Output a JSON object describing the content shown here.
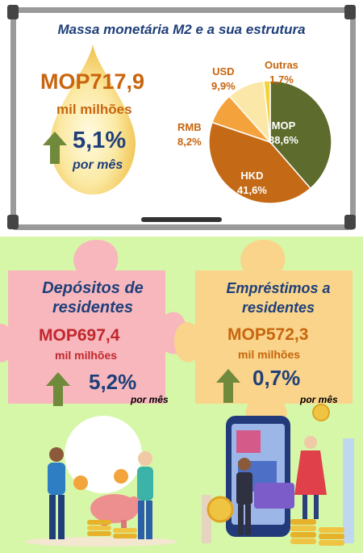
{
  "board": {
    "title": "Massa monetária M2 e a sua estrutura",
    "amount": "MOP717,9",
    "unit": "mil milhões",
    "change": "5,1%",
    "frequency": "por mês"
  },
  "chart_data": {
    "type": "pie",
    "slices": [
      {
        "name": "MOP",
        "label": "38,6%",
        "value": 38.6,
        "color": "#5d6b2c"
      },
      {
        "name": "HKD",
        "label": "41,6%",
        "value": 41.6,
        "color": "#c46a17"
      },
      {
        "name": "RMB",
        "label": "8,2%",
        "value": 8.2,
        "color": "#f4a33c"
      },
      {
        "name": "USD",
        "label": "9,9%",
        "value": 9.9,
        "color": "#fbe7a8"
      },
      {
        "name": "Outras",
        "label": "1,7%",
        "value": 1.7,
        "color": "#f2d33c"
      }
    ]
  },
  "deposits": {
    "title_line1": "Depósitos de",
    "title_line2": "residentes",
    "amount": "MOP697,4",
    "unit": "mil milhões",
    "change": "5,2%",
    "frequency": "por mês"
  },
  "loans": {
    "title_line1": "Empréstimos a",
    "title_line2": "residentes",
    "amount": "MOP572,3",
    "unit": "mil milhões",
    "change": "0,7%",
    "frequency": "por mês"
  },
  "colors": {
    "page_bg": "#d6f7a8",
    "deposits_puzzle": "#f7b7bd",
    "loans_puzzle": "#f9d48a",
    "arrow": "#6f8a3a",
    "navy": "#1f3f7a",
    "deposits_amount": "#c0272d",
    "orange": "#c8650e"
  }
}
